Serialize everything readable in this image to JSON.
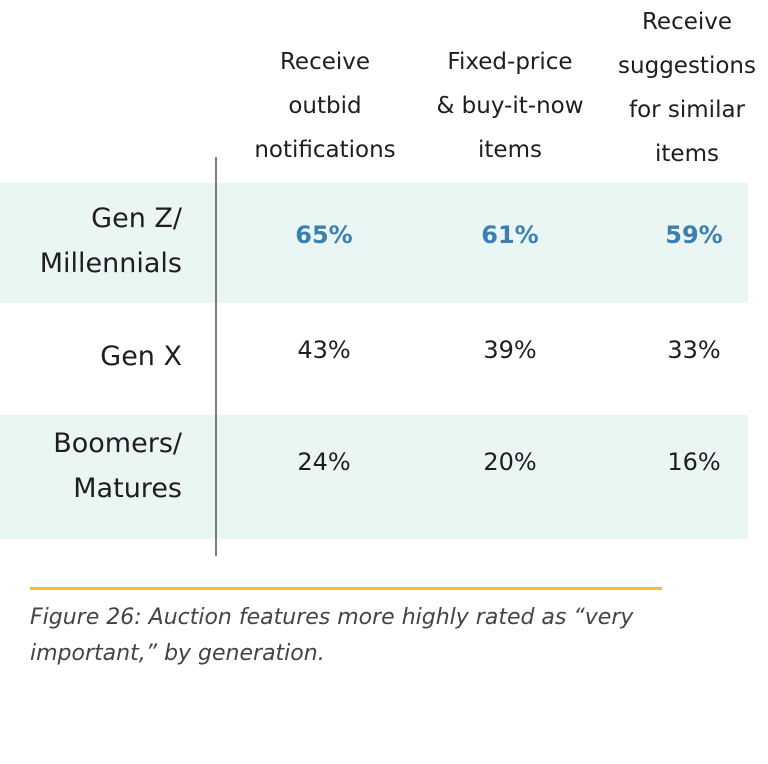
{
  "colors": {
    "band": "#eaf6f4",
    "highlight": "#3d7fb0",
    "rule": "#f2c02c",
    "axis": "#7a7a7a",
    "text": "#1e1e1e"
  },
  "chart_data": {
    "type": "table",
    "columns": [
      {
        "label_lines": [
          "Receive",
          "outbid",
          "notifications"
        ]
      },
      {
        "label_lines": [
          "Fixed-price",
          "& buy-it-now",
          "items"
        ]
      },
      {
        "label_lines": [
          "Receive",
          "suggestions",
          "for similar",
          "items"
        ]
      }
    ],
    "rows": [
      {
        "label_lines": [
          "Gen Z/",
          "Millennials"
        ],
        "values": [
          65,
          61,
          59
        ],
        "display": [
          "65%",
          "61%",
          "59%"
        ],
        "highlight": true
      },
      {
        "label_lines": [
          "Gen X"
        ],
        "values": [
          43,
          39,
          33
        ],
        "display": [
          "43%",
          "39%",
          "33%"
        ],
        "highlight": false
      },
      {
        "label_lines": [
          "Boomers/",
          "Matures"
        ],
        "values": [
          24,
          20,
          16
        ],
        "display": [
          "24%",
          "20%",
          "16%"
        ],
        "highlight": false
      }
    ],
    "unit": "%"
  },
  "caption": "Figure 26: Auction features more highly rated as “very important,” by generation."
}
